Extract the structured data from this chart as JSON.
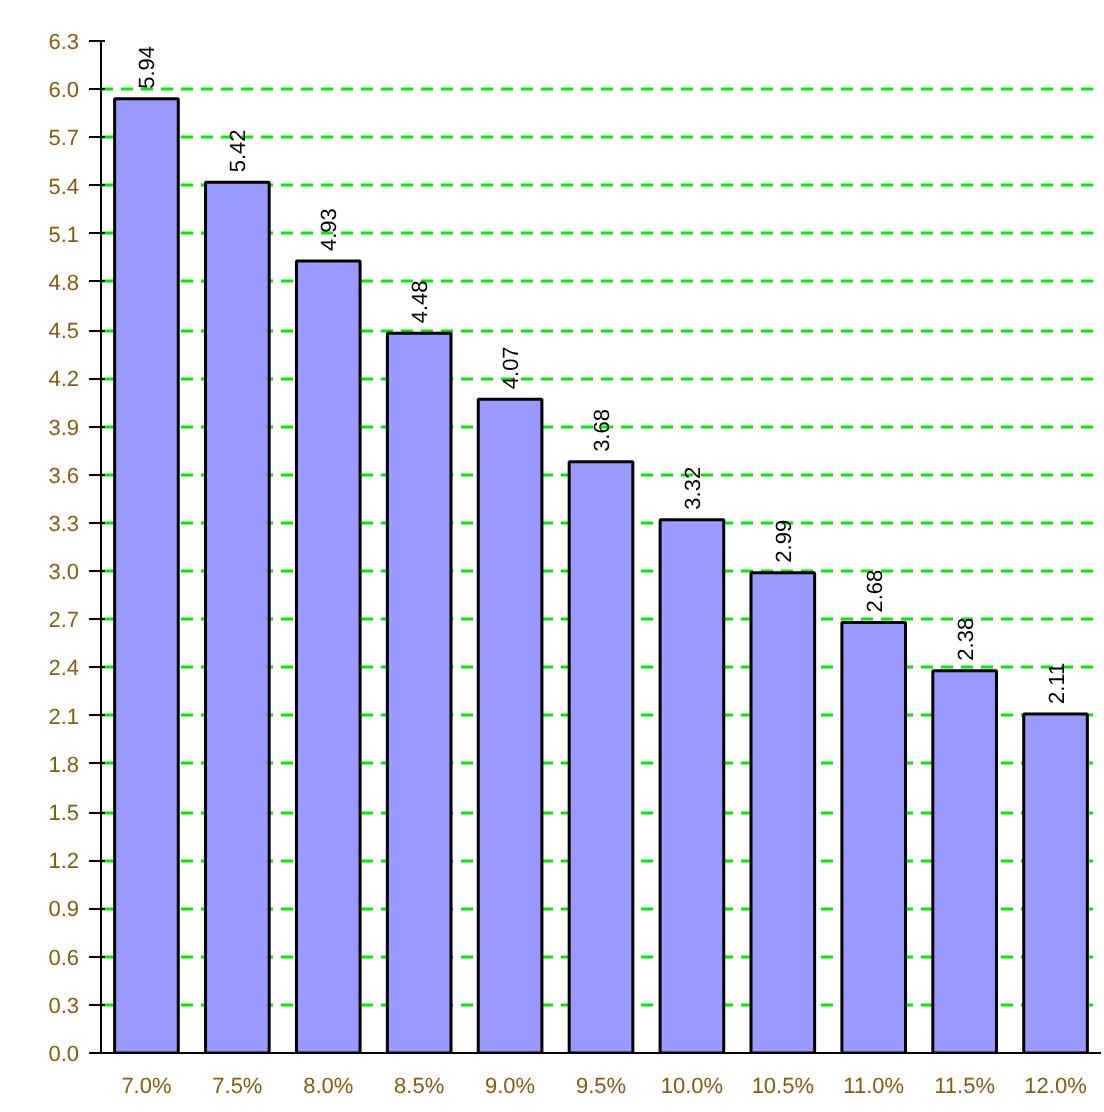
{
  "chart_data": {
    "type": "bar",
    "categories": [
      "7.0%",
      "7.5%",
      "8.0%",
      "8.5%",
      "9.0%",
      "9.5%",
      "10.0%",
      "10.5%",
      "11.0%",
      "11.5%",
      "12.0%"
    ],
    "values": [
      5.94,
      5.42,
      4.93,
      4.48,
      4.07,
      3.68,
      3.32,
      2.99,
      2.68,
      2.38,
      2.11
    ],
    "color": "#9999ff",
    "data_labels": true,
    "grid": "y",
    "ylim": [
      0,
      6.3
    ],
    "yticks": [
      {
        "value": 0,
        "label": "0.0"
      },
      0.3,
      0.6,
      0.9,
      1.2,
      1.5,
      1.8,
      2.1,
      2.4,
      2.7,
      {
        "value": 3,
        "label": "3.0"
      },
      3.3,
      3.6,
      3.9,
      4.2,
      4.5,
      4.8,
      5.1,
      5.4,
      5.7,
      {
        "value": 6,
        "label": "6.0"
      },
      6.3
    ]
  }
}
